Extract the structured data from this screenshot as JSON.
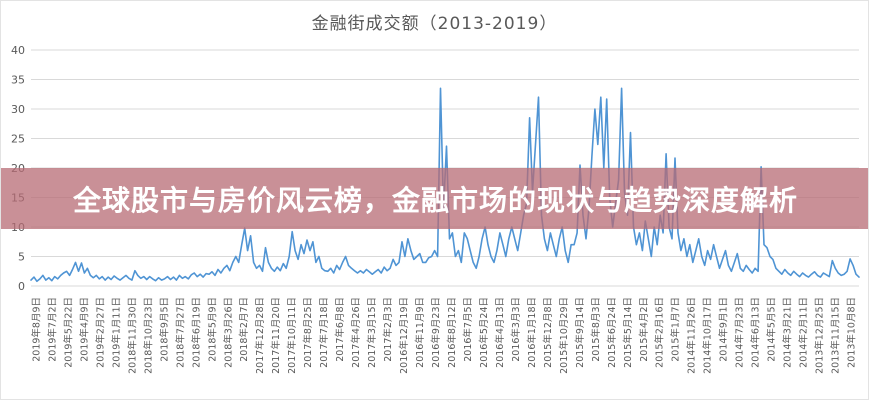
{
  "title": "金融街成交额（2013-2019）",
  "overlay": {
    "text": "全球股市与房价风云榜，金融市场的现状与趋势深度解析",
    "background_rgba": "rgba(183,107,116,0.75)",
    "text_color": "#ffffff"
  },
  "colors": {
    "series": "#4f94d4",
    "gridline": "#d9d9d9",
    "axis_text": "#595959",
    "title_text": "#595959"
  },
  "chart_data": {
    "type": "line",
    "title": "金融街成交额（2013-2019）",
    "xlabel": "",
    "ylabel": "",
    "ylim": [
      0,
      40
    ],
    "yticks": [
      0,
      5,
      10,
      15,
      20,
      25,
      30,
      35,
      40
    ],
    "grid": "horizontal",
    "legend": "none",
    "series_name": "金融街成交额",
    "x_tick_labels": [
      "2019年8月9日",
      "2019年7月2日",
      "2019年5月22日",
      "2019年4月9日",
      "2019年2月27日",
      "2019年1月11日",
      "2018年11月30日",
      "2018年10月23日",
      "2018年9月5日",
      "2018年7月27日",
      "2018年6月19日",
      "2018年5月9日",
      "2018年3月26日",
      "2018年2月7日",
      "2017年12月28日",
      "2017年11月20日",
      "2017年10月11日",
      "2017年8月25日",
      "2017年7月18日",
      "2017年6月8日",
      "2017年4月26日",
      "2017年3月15日",
      "2017年2月3日",
      "2016年12月19日",
      "2016年11月9日",
      "2016年9月23日",
      "2016年8月12日",
      "2016年7月5日",
      "2016年5月24日",
      "2016年4月13日",
      "2016年3月3日",
      "2016年1月18日",
      "2015年12月8日",
      "2015年10月29日",
      "2015年9月14日",
      "2015年8月3日",
      "2015年6月24日",
      "2015年5月14日",
      "2015年4月2日",
      "2015年2月16日",
      "2015年1月7日",
      "2014年11月26日",
      "2014年10月17日",
      "2014年9月1日",
      "2014年7月23日",
      "2014年6月13日",
      "2014年5月5日",
      "2014年3月21日",
      "2014年2月11日",
      "2013年12月25日",
      "2013年11月15日",
      "2013年10月8日"
    ],
    "values": [
      1.0,
      1.5,
      0.8,
      1.2,
      1.8,
      1.0,
      1.4,
      0.9,
      1.6,
      1.2,
      1.8,
      2.2,
      2.5,
      1.8,
      2.8,
      4.0,
      2.5,
      3.9,
      2.2,
      3.0,
      1.8,
      1.4,
      1.8,
      1.2,
      1.6,
      1.0,
      1.5,
      1.1,
      1.7,
      1.3,
      1.0,
      1.4,
      1.8,
      1.3,
      1.0,
      2.6,
      1.8,
      1.3,
      1.6,
      1.1,
      1.6,
      1.2,
      0.9,
      1.4,
      1.0,
      1.2,
      1.6,
      1.1,
      1.5,
      1.0,
      1.8,
      1.3,
      1.6,
      1.2,
      1.9,
      2.2,
      1.6,
      2.0,
      1.5,
      2.1,
      2.0,
      2.4,
      1.8,
      2.8,
      2.2,
      3.0,
      3.5,
      2.6,
      4.0,
      5.0,
      4.0,
      7.0,
      9.8,
      6.0,
      8.5,
      4.0,
      3.0,
      3.5,
      2.5,
      6.5,
      4.0,
      3.0,
      2.5,
      3.2,
      2.6,
      3.8,
      3.0,
      5.0,
      9.2,
      6.0,
      4.5,
      7.0,
      5.5,
      7.8,
      6.0,
      7.5,
      4.0,
      5.0,
      3.0,
      2.6,
      2.5,
      3.0,
      2.2,
      3.5,
      2.8,
      4.0,
      5.0,
      3.5,
      3.0,
      2.6,
      2.2,
      2.6,
      2.2,
      2.8,
      2.4,
      2.0,
      2.4,
      2.8,
      2.2,
      3.2,
      2.6,
      3.0,
      4.5,
      3.5,
      4.0,
      7.5,
      5.0,
      8.0,
      6.0,
      4.5,
      5.0,
      5.5,
      4.0,
      4.0,
      4.8,
      5.0,
      6.0,
      5.0,
      33.5,
      13.0,
      23.7,
      8.0,
      9.0,
      5.0,
      6.0,
      4.0,
      9.0,
      8.0,
      6.0,
      4.0,
      3.0,
      5.0,
      8.0,
      10.0,
      7.0,
      5.0,
      4.0,
      6.0,
      9.0,
      7.0,
      5.0,
      8.0,
      10.0,
      8.0,
      6.0,
      9.0,
      12.0,
      14.0,
      28.5,
      16.0,
      24.0,
      32.0,
      12.0,
      8.0,
      6.0,
      9.0,
      7.0,
      5.0,
      8.0,
      10.0,
      6.0,
      4.0,
      7.0,
      7.0,
      9.0,
      20.5,
      12.0,
      8.0,
      13.0,
      22.0,
      30.0,
      24.0,
      32.0,
      20.0,
      31.7,
      15.0,
      10.0,
      14.0,
      18.0,
      33.5,
      16.0,
      12.0,
      26.0,
      10.0,
      7.0,
      9.0,
      6.0,
      11.0,
      8.0,
      5.0,
      10.0,
      7.0,
      12.0,
      9.0,
      22.4,
      10.0,
      8.0,
      21.7,
      9.0,
      6.0,
      8.0,
      5.0,
      7.0,
      4.0,
      6.0,
      8.0,
      5.0,
      3.5,
      6.0,
      4.5,
      7.0,
      5.0,
      3.0,
      4.5,
      6.0,
      3.5,
      2.5,
      4.0,
      5.5,
      3.0,
      2.5,
      3.5,
      2.8,
      2.2,
      3.0,
      2.5,
      20.2,
      7.0,
      6.5,
      5.0,
      4.5,
      3.0,
      2.5,
      2.0,
      2.8,
      2.2,
      1.8,
      2.5,
      2.0,
      1.6,
      2.2,
      1.8,
      1.5,
      2.0,
      2.4,
      1.8,
      1.5,
      2.2,
      1.9,
      1.6,
      4.3,
      3.0,
      2.2,
      1.8,
      2.0,
      2.5,
      4.6,
      3.5,
      2.0,
      1.5
    ]
  }
}
